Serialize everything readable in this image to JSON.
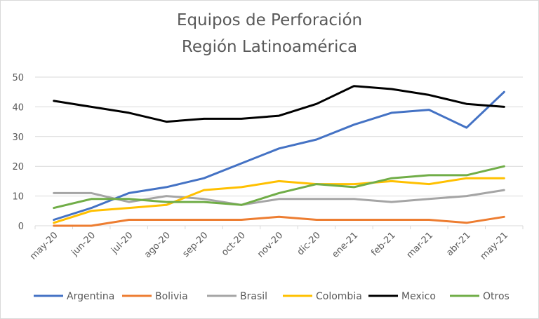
{
  "chart_data": {
    "type": "line",
    "title": "Equipos de Perforación",
    "subtitle": "Región Latinoamérica",
    "ylim": [
      0,
      50
    ],
    "yticks": [
      0,
      10,
      20,
      30,
      40,
      50
    ],
    "grid": true,
    "legend_position": "bottom",
    "categories": [
      "may-20",
      "jun-20",
      "jul-20",
      "ago-20",
      "sep-20",
      "oct-20",
      "nov-20",
      "dic-20",
      "ene-21",
      "feb-21",
      "mar-21",
      "abr-21",
      "may-21"
    ],
    "series": [
      {
        "name": "Argentina",
        "color": "#4472c4",
        "values": [
          2,
          6,
          11,
          13,
          16,
          21,
          26,
          29,
          34,
          38,
          39,
          33,
          45
        ]
      },
      {
        "name": "Bolivia",
        "color": "#ed7d31",
        "values": [
          0,
          0,
          2,
          2,
          2,
          2,
          3,
          2,
          2,
          2,
          2,
          1,
          3
        ]
      },
      {
        "name": "Brasil",
        "color": "#a5a5a5",
        "values": [
          11,
          11,
          8,
          10,
          9,
          7,
          9,
          9,
          9,
          8,
          9,
          10,
          12
        ]
      },
      {
        "name": "Colombia",
        "color": "#ffc000",
        "values": [
          1,
          5,
          6,
          7,
          12,
          13,
          15,
          14,
          14,
          15,
          14,
          16,
          16
        ]
      },
      {
        "name": "Mexico",
        "color": "#000000",
        "values": [
          42,
          40,
          38,
          35,
          36,
          36,
          37,
          41,
          47,
          46,
          44,
          41,
          40
        ]
      },
      {
        "name": "Otros",
        "color": "#70ad47",
        "values": [
          6,
          9,
          9,
          8,
          8,
          7,
          11,
          14,
          13,
          16,
          17,
          17,
          20
        ]
      }
    ]
  }
}
